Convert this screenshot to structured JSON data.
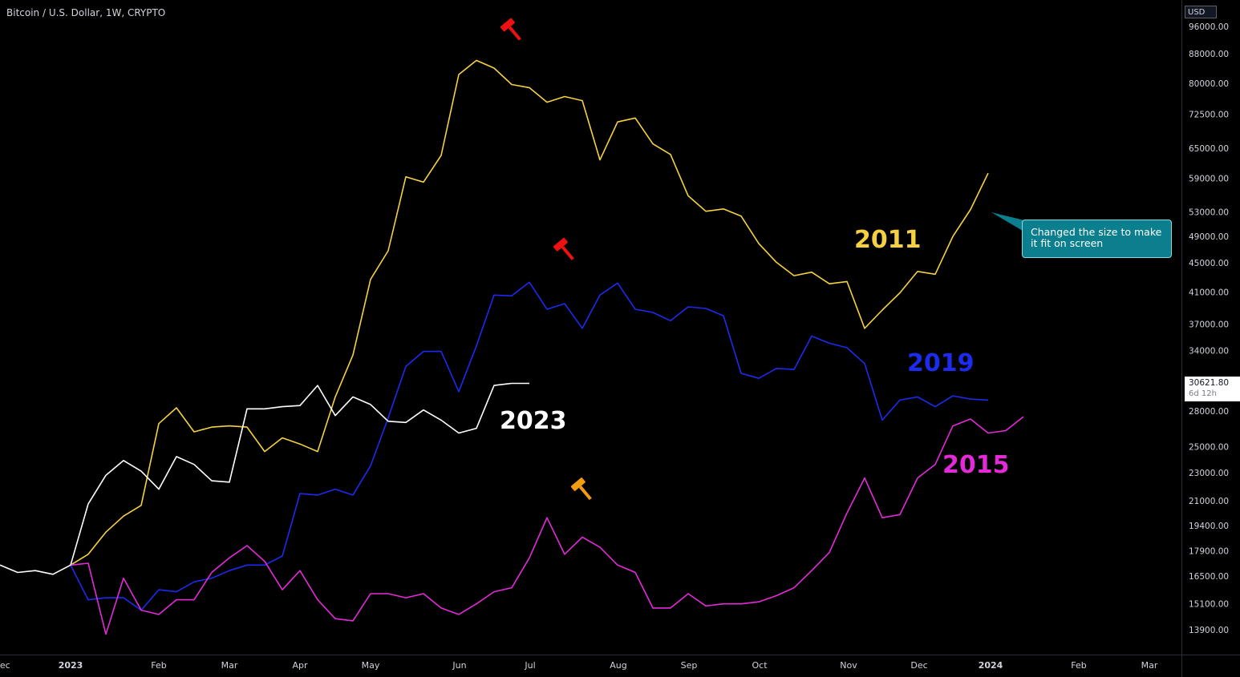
{
  "header": {
    "symbol_title": "Bitcoin / U.S. Dollar, 1W, CRYPTO"
  },
  "price_scale": {
    "currency": "USD",
    "last_price": "30621.80",
    "countdown": "6d 12h"
  },
  "annotation": {
    "text": "Changed the size to make it fit on screen"
  },
  "year_labels": {
    "y2011": "2011",
    "y2019": "2019",
    "y2015": "2015",
    "y2023": "2023"
  },
  "colors": {
    "background": "#000000",
    "y2011": "#f5d142",
    "y2019": "#1c2bf0",
    "y2015": "#e42ad8",
    "y2023": "#ffffff",
    "marker_red": "#ee1111",
    "marker_orange": "#f39c12",
    "callout": "#0b7f8e"
  },
  "chart_data": {
    "type": "line",
    "log_scale": true,
    "grid": false,
    "x_ticks": [
      "Dec",
      "2023",
      "Feb",
      "Mar",
      "Apr",
      "May",
      "Jun",
      "Jul",
      "Aug",
      "Sep",
      "Oct",
      "Nov",
      "Dec",
      "2024",
      "Feb",
      "Mar"
    ],
    "y_ticks": [
      96000,
      88000,
      80000,
      72500,
      65000,
      59000,
      53000,
      49000,
      45000,
      41000,
      37000,
      34000,
      28000,
      25000,
      23000,
      21000,
      19400,
      17900,
      16500,
      15100,
      13900
    ],
    "x_start": "2022-11-27",
    "x_step_days": 7,
    "series": [
      {
        "name": "2023",
        "color_key": "y2023",
        "start_index": 0,
        "values": [
          17100,
          16700,
          16800,
          16600,
          17100,
          20800,
          22800,
          23900,
          23100,
          21800,
          24200,
          23600,
          22400,
          22300,
          28200,
          28200,
          28400,
          28500,
          30400,
          27600,
          29300,
          28600,
          27100,
          27000,
          28100,
          27200,
          26100,
          26500,
          30400,
          30600,
          30600
        ]
      },
      {
        "name": "2011",
        "color_key": "y2011",
        "start_index": 4,
        "values": [
          17100,
          17700,
          19000,
          20000,
          20700,
          26900,
          28300,
          26200,
          26600,
          26700,
          26600,
          24600,
          25700,
          25200,
          24600,
          29300,
          33500,
          42700,
          46800,
          59300,
          58300,
          63500,
          82300,
          86100,
          84000,
          79700,
          78900,
          75300,
          76700,
          75700,
          62600,
          70700,
          71600,
          65900,
          63700,
          55800,
          53100,
          53500,
          52300,
          47900,
          45100,
          43200,
          43700,
          42100,
          42400,
          36500,
          38700,
          40900,
          43800,
          43400,
          49000,
          53400,
          60000
        ]
      },
      {
        "name": "2019",
        "color_key": "y2019",
        "start_index": 4,
        "values": [
          17100,
          15300,
          15400,
          15400,
          14800,
          15800,
          15700,
          16200,
          16400,
          16800,
          17100,
          17100,
          17600,
          21500,
          21400,
          21800,
          21400,
          23500,
          27400,
          32300,
          33900,
          33900,
          29800,
          34500,
          40600,
          40500,
          42300,
          38800,
          39500,
          36500,
          40600,
          42200,
          38800,
          38400,
          37400,
          39100,
          38900,
          38000,
          31600,
          31100,
          32100,
          32000,
          35600,
          34800,
          34300,
          32600,
          27200,
          29000,
          29300,
          28400,
          29400,
          29100,
          29000
        ]
      },
      {
        "name": "2015",
        "color_key": "y2015",
        "start_index": 4,
        "values": [
          17100,
          17200,
          13700,
          16400,
          14800,
          14600,
          15300,
          15300,
          16700,
          17500,
          18200,
          17300,
          15800,
          16800,
          15300,
          14400,
          14300,
          15600,
          15600,
          15400,
          15600,
          14900,
          14600,
          15100,
          15700,
          15900,
          17500,
          19900,
          17700,
          18700,
          18100,
          17100,
          16700,
          14900,
          14900,
          15600,
          15000,
          15100,
          15100,
          15200,
          15500,
          15900,
          16800,
          17800,
          20200,
          22600,
          19900,
          20100,
          22600,
          23600,
          26700,
          27300,
          26100,
          26300,
          27500
        ]
      }
    ],
    "markers": [
      {
        "type": "gavel",
        "color_key": "marker_red",
        "index": 29,
        "value": 95000
      },
      {
        "type": "gavel",
        "color_key": "marker_red",
        "index": 32,
        "value": 47000
      },
      {
        "type": "gavel",
        "color_key": "marker_orange",
        "index": 33,
        "value": 21800
      }
    ]
  }
}
